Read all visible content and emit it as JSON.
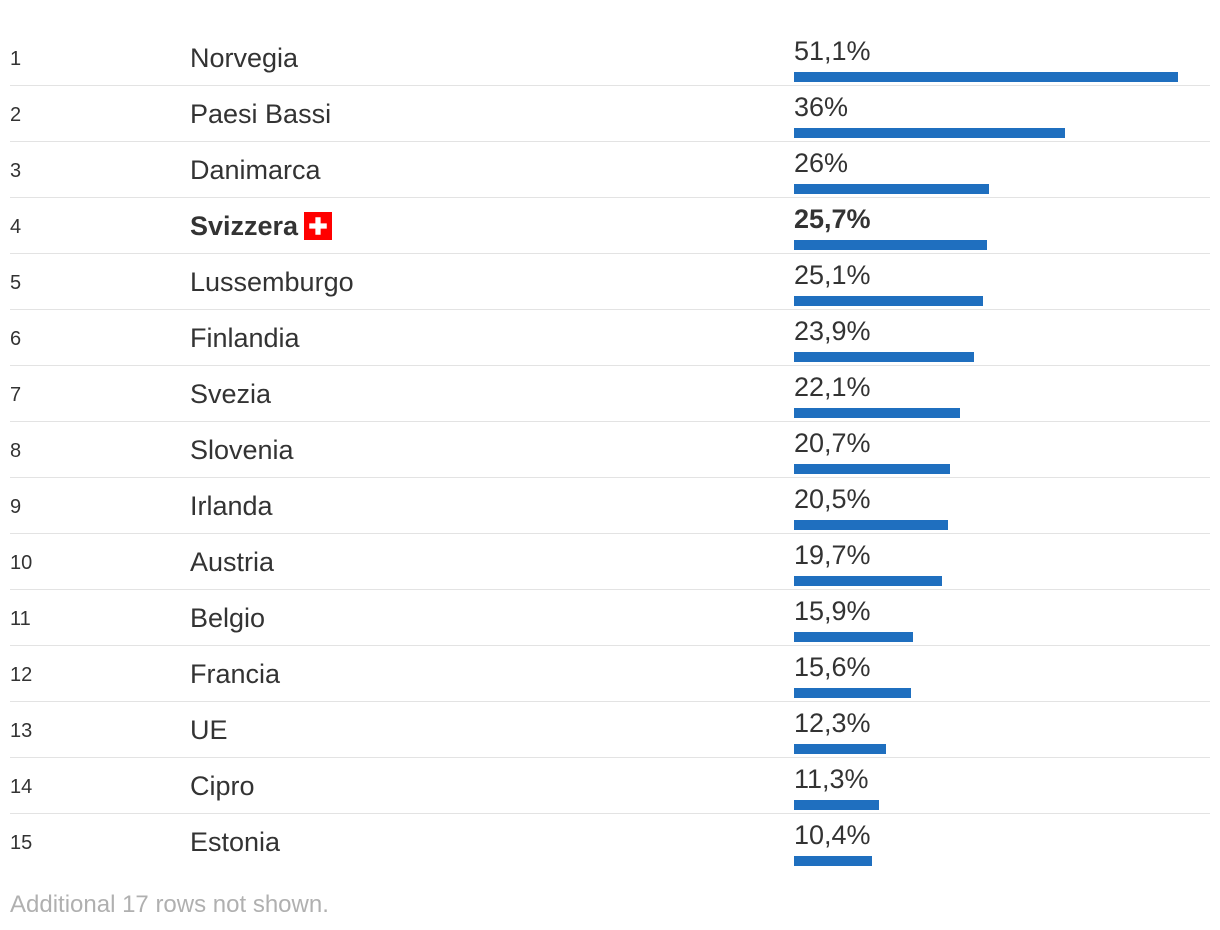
{
  "chart_data": {
    "type": "bar",
    "orientation": "horizontal",
    "ranks": [
      "1",
      "2",
      "3",
      "4",
      "5",
      "6",
      "7",
      "8",
      "9",
      "10",
      "11",
      "12",
      "13",
      "14",
      "15"
    ],
    "categories": [
      "Norvegia",
      "Paesi Bassi",
      "Danimarca",
      "Svizzera",
      "Lussemburgo",
      "Finlandia",
      "Svezia",
      "Slovenia",
      "Irlanda",
      "Austria",
      "Belgio",
      "Francia",
      "UE",
      "Cipro",
      "Estonia"
    ],
    "values": [
      51.1,
      36,
      26,
      25.7,
      25.1,
      23.9,
      22.1,
      20.7,
      20.5,
      19.7,
      15.9,
      15.6,
      12.3,
      11.3,
      10.4
    ],
    "labels": [
      "51,1%",
      "36%",
      "26%",
      "25,7%",
      "25,1%",
      "23,9%",
      "22,1%",
      "20,7%",
      "20,5%",
      "19,7%",
      "15,9%",
      "15,6%",
      "12,3%",
      "11,3%",
      "10,4%"
    ],
    "highlight_index": 3,
    "highlight_icon": "swiss-flag-icon",
    "bar_color": "#1f6fbf",
    "highlight_flag_colors": {
      "background": "#ff0000",
      "cross": "#ffffff"
    },
    "footnote": "Additional 17 rows not shown."
  }
}
